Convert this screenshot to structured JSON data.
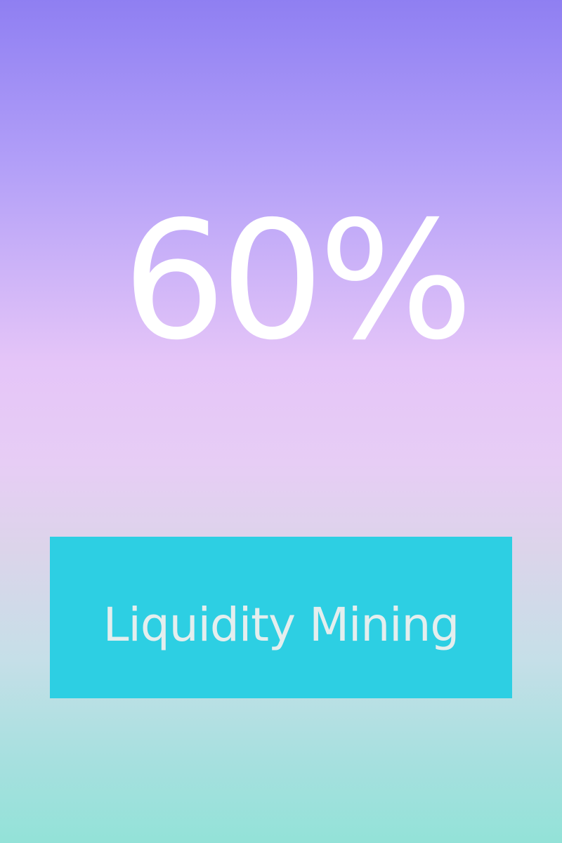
{
  "promo": {
    "headline": "60%",
    "cta_label": "Liquidity Mining"
  },
  "colors": {
    "gradient_top": "#8f7ff2",
    "gradient_middle": "#e7cdf5",
    "gradient_bottom": "#93e2d8",
    "headline_text": "#ffffff",
    "cta_background": "#2dcfe3",
    "cta_text": "#e4eeee"
  }
}
